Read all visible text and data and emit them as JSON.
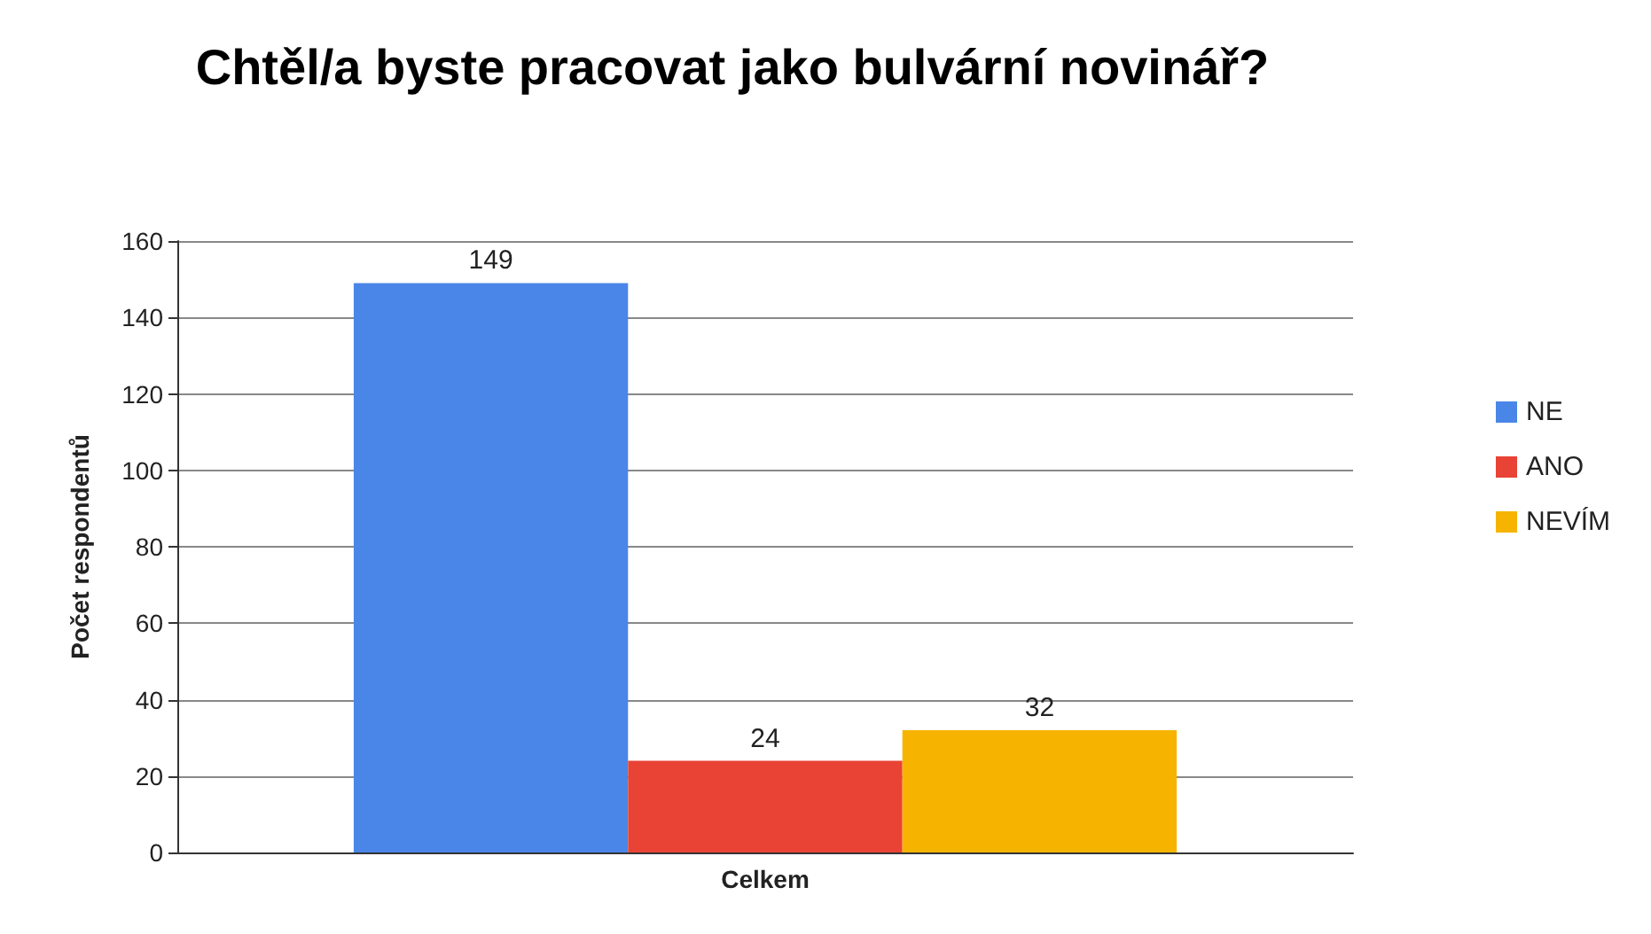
{
  "chart_data": {
    "type": "bar",
    "title": "Chtěl/a byste pracovat jako bulvární novinář?",
    "ylabel": "Počet respondentů",
    "categories": [
      "Celkem"
    ],
    "series": [
      {
        "name": "NE",
        "color": "#4a86e8",
        "values": [
          149
        ]
      },
      {
        "name": "ANO",
        "color": "#e84335",
        "values": [
          24
        ]
      },
      {
        "name": "NEVÍM",
        "color": "#f6b400",
        "values": [
          32
        ]
      }
    ],
    "ylim": [
      0,
      160
    ],
    "yticks": [
      0,
      20,
      40,
      60,
      80,
      100,
      120,
      140,
      160
    ],
    "grid": "y",
    "legend": "right",
    "data_labels": true
  }
}
